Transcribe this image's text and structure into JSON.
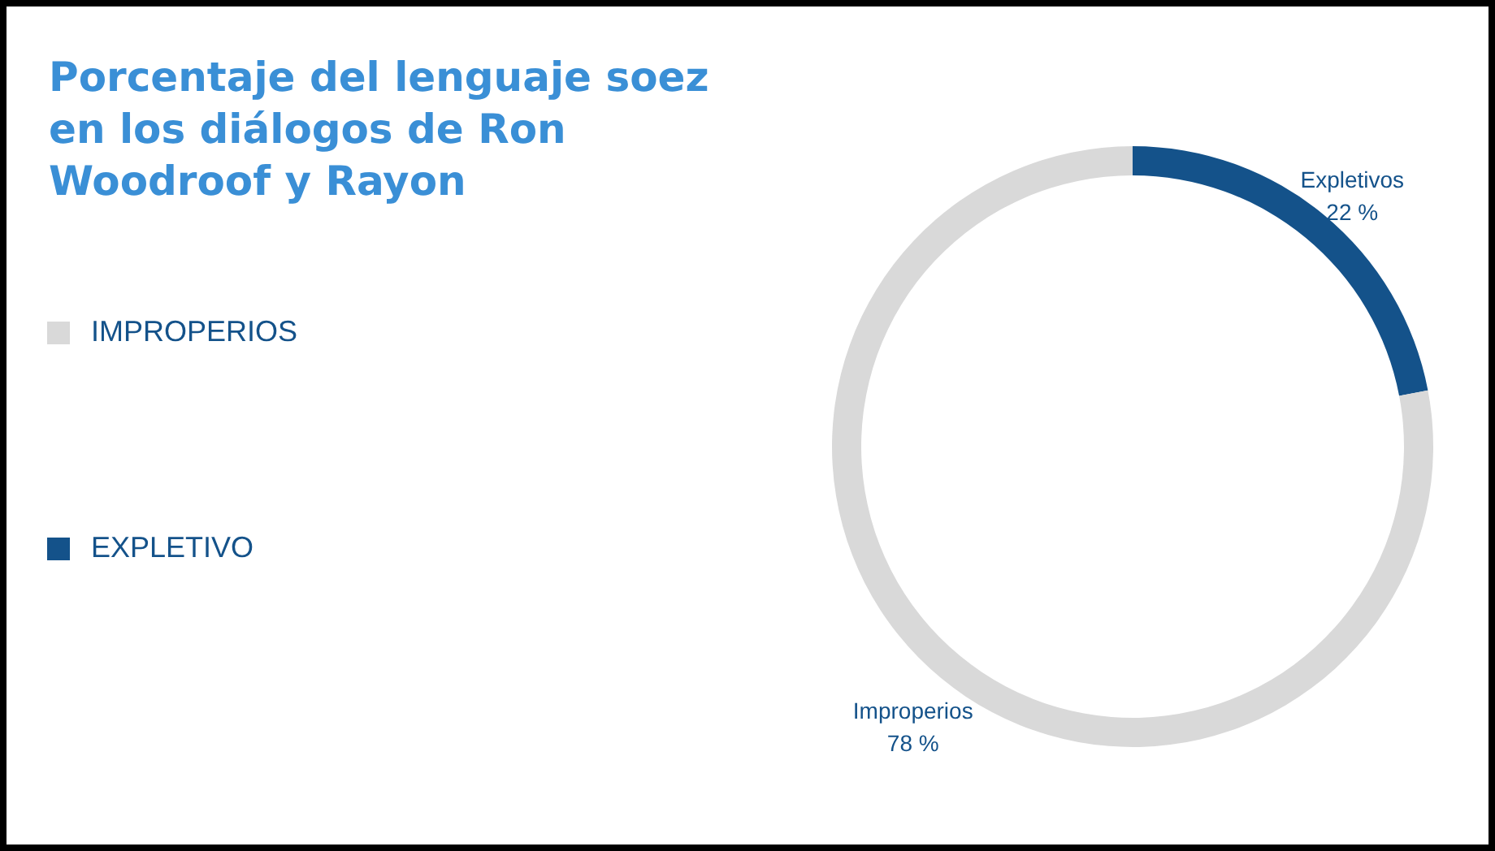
{
  "chart_data": {
    "type": "donut",
    "title": "Porcentaje del lenguaje soez en los diálogos de Ron Woodroof y Rayon",
    "categories": [
      "Expletivos",
      "Improperios"
    ],
    "values": [
      22,
      78
    ],
    "value_labels": [
      "22 %",
      "78 %"
    ],
    "colors": [
      "#14528a",
      "#d9d9d9"
    ],
    "annotations": [
      "IMPROPERIOS",
      "EXPLETIVO"
    ]
  }
}
